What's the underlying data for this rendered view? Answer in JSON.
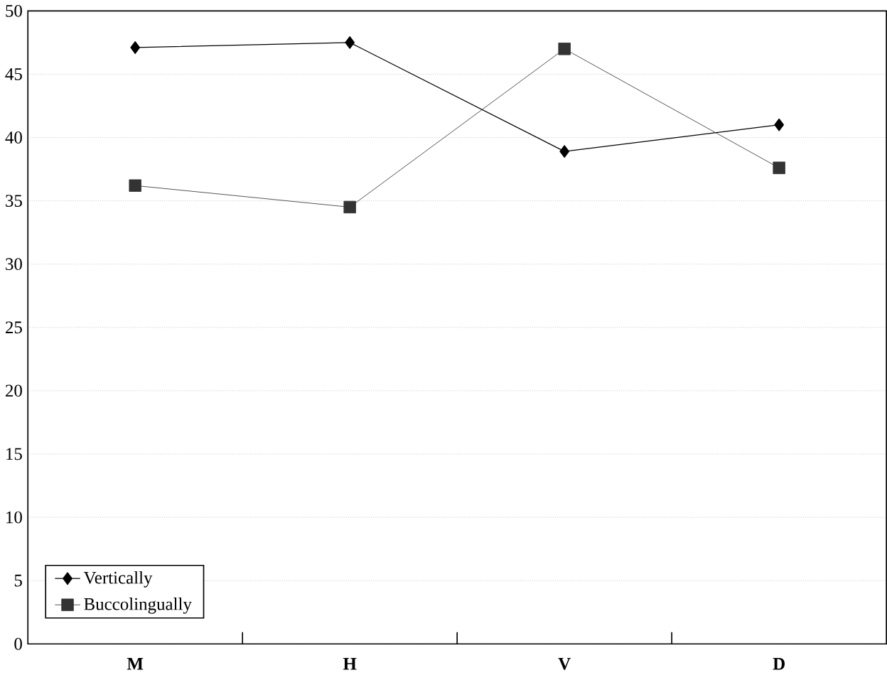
{
  "chart_data": {
    "type": "line",
    "categories": [
      "M",
      "H",
      "V",
      "D"
    ],
    "series": [
      {
        "name": "Vertically",
        "color": "#000000",
        "marker": "diamond",
        "values": [
          47.1,
          47.5,
          38.9,
          41.0
        ]
      },
      {
        "name": "Buccolingually",
        "color": "#333333",
        "marker": "square",
        "values": [
          36.2,
          34.5,
          47.0,
          37.6
        ]
      }
    ],
    "ylim": [
      0,
      50
    ],
    "yticks": [
      0,
      5,
      10,
      15,
      20,
      25,
      30,
      35,
      40,
      45,
      50
    ],
    "grid": "y",
    "legend": "bottom left"
  }
}
